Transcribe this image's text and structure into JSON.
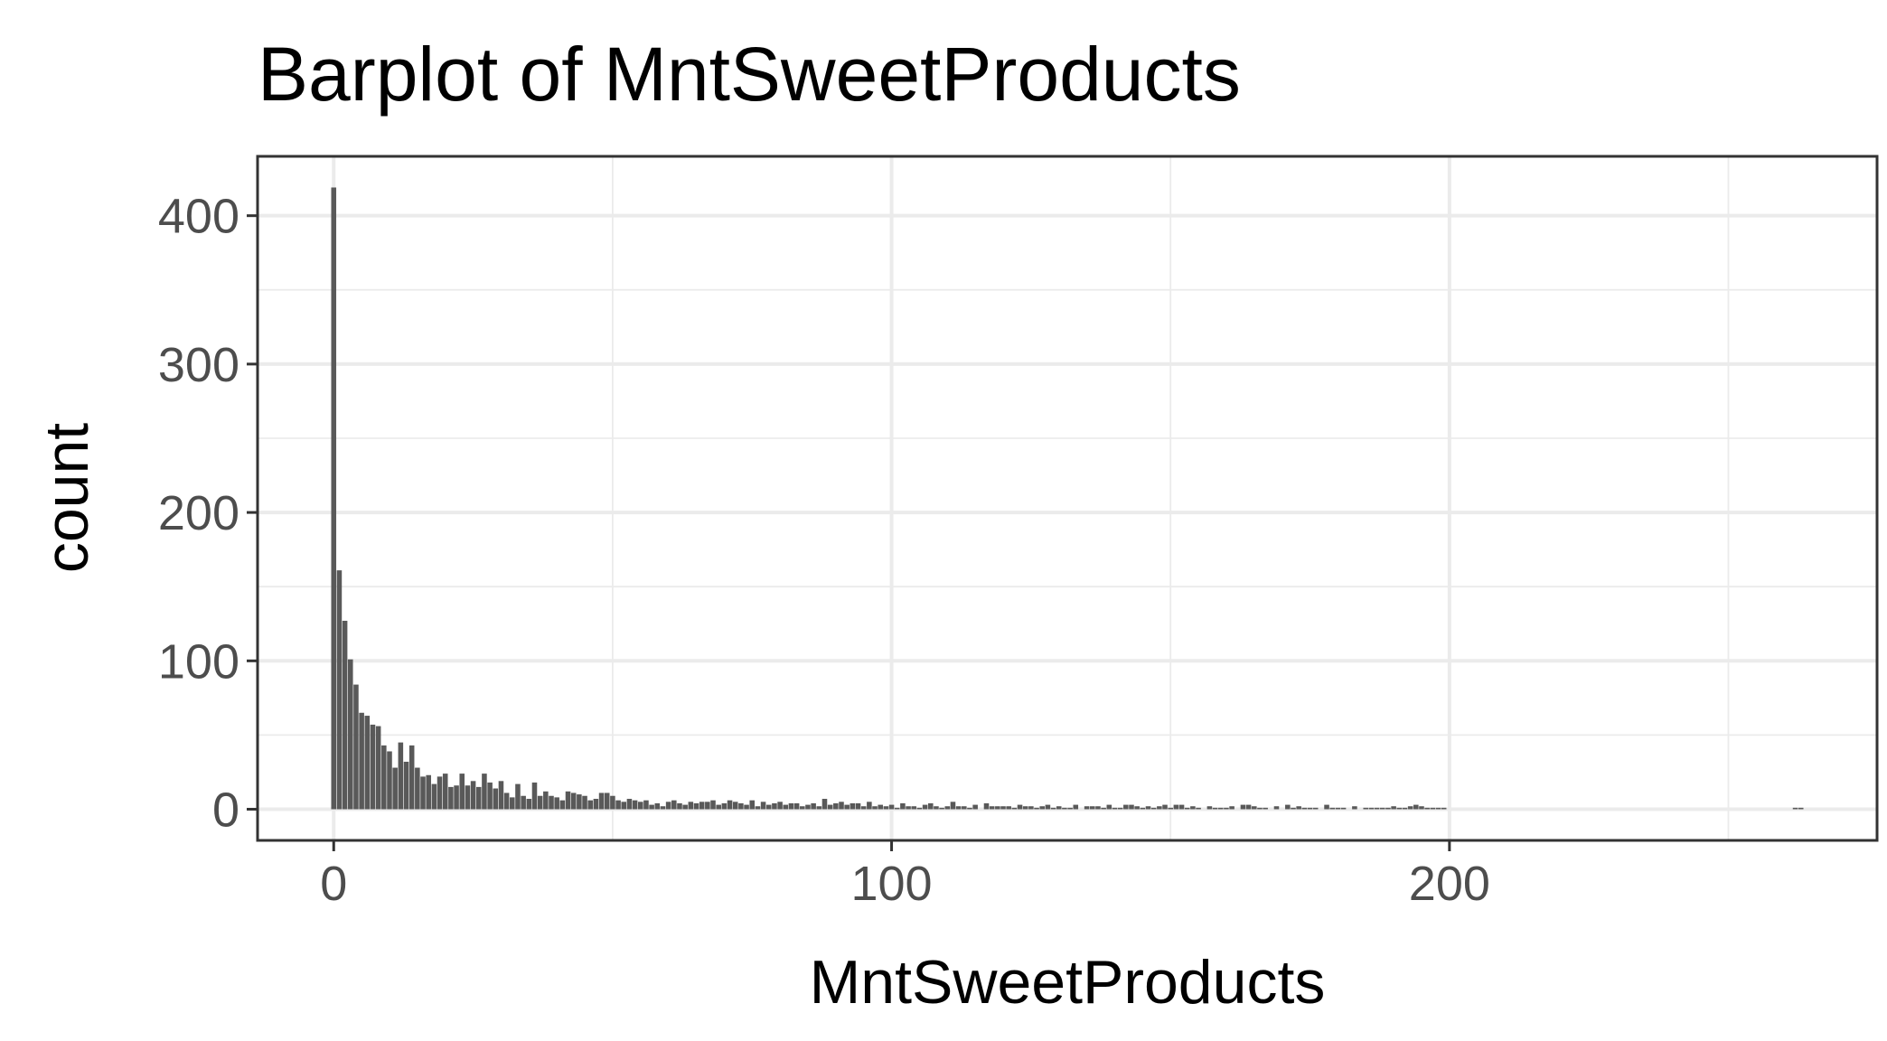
{
  "chart_data": {
    "type": "bar",
    "title": "Barplot of MntSweetProducts",
    "x_label": "MntSweetProducts",
    "y_label": "count",
    "x": [
      0,
      1,
      2,
      3,
      4,
      5,
      6,
      7,
      8,
      9,
      10,
      11,
      12,
      13,
      14,
      15,
      16,
      17,
      18,
      19,
      20,
      21,
      22,
      23,
      24,
      25,
      26,
      27,
      28,
      29,
      30,
      31,
      32,
      33,
      34,
      35,
      36,
      37,
      38,
      39,
      40,
      41,
      42,
      43,
      44,
      45,
      46,
      47,
      48,
      49,
      50,
      51,
      52,
      53,
      54,
      55,
      56,
      57,
      58,
      59,
      60,
      61,
      62,
      63,
      64,
      65,
      66,
      67,
      68,
      69,
      70,
      71,
      72,
      73,
      74,
      75,
      76,
      77,
      78,
      79,
      80,
      81,
      82,
      83,
      84,
      85,
      86,
      87,
      88,
      89,
      90,
      91,
      92,
      93,
      94,
      95,
      96,
      97,
      98,
      99,
      100,
      101,
      102,
      103,
      104,
      105,
      106,
      107,
      108,
      109,
      110,
      111,
      112,
      113,
      114,
      115,
      116,
      117,
      118,
      119,
      120,
      121,
      122,
      123,
      124,
      125,
      126,
      127,
      128,
      129,
      130,
      131,
      132,
      133,
      134,
      135,
      136,
      137,
      138,
      139,
      140,
      141,
      142,
      143,
      144,
      145,
      146,
      147,
      148,
      149,
      150,
      151,
      152,
      153,
      154,
      155,
      156,
      157,
      158,
      159,
      160,
      161,
      162,
      163,
      164,
      165,
      166,
      167,
      168,
      169,
      170,
      171,
      172,
      173,
      174,
      175,
      176,
      177,
      178,
      179,
      180,
      181,
      182,
      183,
      184,
      185,
      186,
      187,
      188,
      189,
      190,
      191,
      192,
      193,
      194,
      195,
      196,
      197,
      198,
      199,
      262,
      263
    ],
    "values": [
      419,
      161,
      127,
      101,
      84,
      65,
      63,
      57,
      56,
      43,
      39,
      28,
      45,
      32,
      43,
      28,
      22,
      23,
      17,
      22,
      24,
      15,
      16,
      24,
      16,
      19,
      15,
      24,
      18,
      14,
      19,
      11,
      8,
      17,
      9,
      7,
      18,
      9,
      12,
      9,
      8,
      6,
      12,
      11,
      10,
      9,
      6,
      7,
      11,
      11,
      9,
      6,
      5,
      7,
      6,
      5,
      6,
      3,
      4,
      2,
      5,
      6,
      4,
      3,
      5,
      4,
      5,
      5,
      6,
      3,
      4,
      6,
      5,
      4,
      3,
      6,
      2,
      5,
      3,
      4,
      5,
      3,
      4,
      4,
      2,
      3,
      4,
      2,
      7,
      3,
      4,
      5,
      3,
      4,
      4,
      2,
      5,
      2,
      3,
      2,
      3,
      1,
      4,
      2,
      2,
      1,
      3,
      4,
      2,
      1,
      2,
      5,
      2,
      2,
      1,
      3,
      0,
      4,
      2,
      2,
      2,
      2,
      1,
      3,
      2,
      2,
      1,
      2,
      3,
      1,
      2,
      1,
      1,
      3,
      0,
      2,
      2,
      2,
      1,
      3,
      1,
      1,
      3,
      3,
      2,
      1,
      2,
      1,
      2,
      3,
      1,
      3,
      3,
      1,
      2,
      1,
      0,
      2,
      1,
      1,
      1,
      2,
      0,
      3,
      3,
      2,
      1,
      1,
      0,
      2,
      0,
      3,
      1,
      2,
      1,
      1,
      1,
      0,
      3,
      1,
      1,
      1,
      0,
      2,
      0,
      1,
      1,
      1,
      1,
      1,
      2,
      1,
      1,
      2,
      3,
      2,
      1,
      1,
      1,
      1,
      1,
      1
    ],
    "color": "#595959",
    "xlim": [
      -13.65,
      276.65
    ],
    "ylim": [
      -21,
      440
    ],
    "xticks": [
      0,
      100,
      200
    ],
    "yticks": [
      0,
      100,
      200,
      300,
      400
    ],
    "x_minor_ticks": [
      50,
      150,
      250
    ],
    "y_minor_ticks": [
      50,
      150,
      250,
      350
    ],
    "grid": true
  }
}
